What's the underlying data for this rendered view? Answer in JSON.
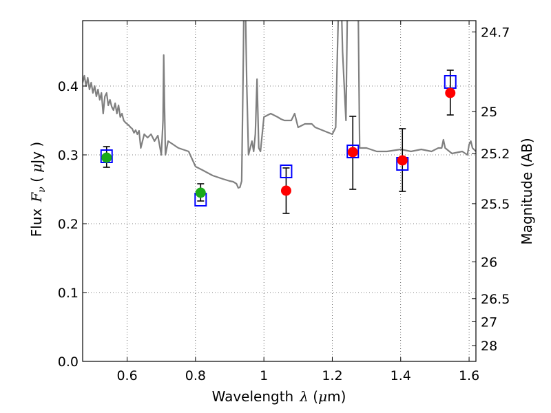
{
  "chart_data": {
    "type": "scatter",
    "xlabel": "Wavelength",
    "xlabel_symbol": "λ",
    "xlabel_unit_open": " (",
    "xlabel_unit_mu": "μ",
    "xlabel_unit_close": "m)",
    "ylabel_prefix": "Flux",
    "ylabel_symbol": "F",
    "ylabel_sub": "ν",
    "ylabel_unit_open": " ( ",
    "ylabel_unit_mu": "μ",
    "ylabel_unit_close": "Jy )",
    "y2label": "Magnitude (AB)",
    "xlim": [
      0.47,
      1.62
    ],
    "ylim": [
      0.0,
      0.495
    ],
    "grid": true,
    "x_ticks": [
      {
        "value": 0.6,
        "label": "0.6"
      },
      {
        "value": 0.8,
        "label": "0.8"
      },
      {
        "value": 1.0,
        "label": "1"
      },
      {
        "value": 1.2,
        "label": "1.2"
      },
      {
        "value": 1.4,
        "label": "1.4"
      },
      {
        "value": 1.6,
        "label": "1.6"
      }
    ],
    "y_ticks": [
      {
        "value": 0.0,
        "label": "0.0"
      },
      {
        "value": 0.1,
        "label": "0.1"
      },
      {
        "value": 0.2,
        "label": "0.2"
      },
      {
        "value": 0.3,
        "label": "0.3"
      },
      {
        "value": 0.4,
        "label": "0.4"
      }
    ],
    "y2_ticks": [
      {
        "value": 24.7,
        "label": "24.7"
      },
      {
        "value": 25.0,
        "label": "25"
      },
      {
        "value": 25.2,
        "label": "25.2"
      },
      {
        "value": 25.5,
        "label": "25.5"
      },
      {
        "value": 26.0,
        "label": "26"
      },
      {
        "value": 26.5,
        "label": "26.5"
      },
      {
        "value": 27.0,
        "label": "27"
      },
      {
        "value": 28.0,
        "label": "28"
      }
    ],
    "model_spectrum": {
      "color": "#808080",
      "x": [
        0.47,
        0.475,
        0.48,
        0.485,
        0.49,
        0.495,
        0.5,
        0.505,
        0.51,
        0.515,
        0.52,
        0.525,
        0.53,
        0.535,
        0.54,
        0.545,
        0.55,
        0.555,
        0.56,
        0.565,
        0.57,
        0.575,
        0.58,
        0.585,
        0.59,
        0.595,
        0.6,
        0.605,
        0.61,
        0.615,
        0.62,
        0.625,
        0.63,
        0.635,
        0.64,
        0.65,
        0.66,
        0.67,
        0.68,
        0.69,
        0.7,
        0.705,
        0.707,
        0.709,
        0.712,
        0.72,
        0.75,
        0.78,
        0.8,
        0.82,
        0.85,
        0.88,
        0.9,
        0.91,
        0.92,
        0.925,
        0.93,
        0.935,
        0.94,
        0.942,
        0.945,
        0.95,
        0.955,
        0.96,
        0.965,
        0.97,
        0.975,
        0.98,
        0.985,
        0.99,
        1.0,
        1.02,
        1.04,
        1.05,
        1.06,
        1.08,
        1.09,
        1.1,
        1.12,
        1.14,
        1.15,
        1.16,
        1.2,
        1.21,
        1.215,
        1.22,
        1.225,
        1.23,
        1.235,
        1.24,
        1.245,
        1.25,
        1.255,
        1.26,
        1.265,
        1.27,
        1.275,
        1.28,
        1.3,
        1.33,
        1.36,
        1.4,
        1.43,
        1.46,
        1.49,
        1.51,
        1.52,
        1.525,
        1.53,
        1.55,
        1.58,
        1.595,
        1.6,
        1.605,
        1.61,
        1.62
      ],
      "y": [
        0.405,
        0.415,
        0.4,
        0.412,
        0.395,
        0.405,
        0.39,
        0.4,
        0.385,
        0.395,
        0.38,
        0.39,
        0.36,
        0.385,
        0.39,
        0.372,
        0.38,
        0.37,
        0.365,
        0.375,
        0.36,
        0.372,
        0.355,
        0.36,
        0.35,
        0.347,
        0.345,
        0.343,
        0.34,
        0.338,
        0.332,
        0.336,
        0.33,
        0.335,
        0.31,
        0.33,
        0.325,
        0.33,
        0.32,
        0.328,
        0.3,
        0.35,
        0.445,
        0.38,
        0.3,
        0.32,
        0.31,
        0.305,
        0.283,
        0.278,
        0.27,
        0.265,
        0.262,
        0.261,
        0.258,
        0.252,
        0.253,
        0.262,
        0.45,
        0.55,
        0.55,
        0.4,
        0.3,
        0.31,
        0.32,
        0.305,
        0.33,
        0.41,
        0.31,
        0.305,
        0.355,
        0.36,
        0.355,
        0.352,
        0.35,
        0.35,
        0.36,
        0.34,
        0.345,
        0.345,
        0.34,
        0.338,
        0.33,
        0.34,
        0.45,
        0.55,
        0.55,
        0.45,
        0.4,
        0.35,
        0.55,
        0.55,
        0.55,
        0.55,
        0.55,
        0.55,
        0.55,
        0.31,
        0.31,
        0.305,
        0.305,
        0.308,
        0.305,
        0.308,
        0.305,
        0.31,
        0.31,
        0.322,
        0.31,
        0.302,
        0.305,
        0.3,
        0.315,
        0.32,
        0.31,
        0.305
      ]
    },
    "error_bars": [
      {
        "x": 0.54,
        "low": 0.282,
        "high": 0.312
      },
      {
        "x": 0.815,
        "low": 0.233,
        "high": 0.258
      },
      {
        "x": 1.065,
        "low": 0.215,
        "high": 0.281
      },
      {
        "x": 1.26,
        "low": 0.25,
        "high": 0.356
      },
      {
        "x": 1.405,
        "low": 0.247,
        "high": 0.338
      },
      {
        "x": 1.545,
        "low": 0.358,
        "high": 0.423
      }
    ],
    "series": [
      {
        "marker": "square-open",
        "color": "#0000ff",
        "points": [
          {
            "x": 0.54,
            "y": 0.298
          },
          {
            "x": 0.815,
            "y": 0.235
          },
          {
            "x": 1.065,
            "y": 0.276
          },
          {
            "x": 1.26,
            "y": 0.305
          },
          {
            "x": 1.405,
            "y": 0.287
          },
          {
            "x": 1.545,
            "y": 0.406
          }
        ]
      },
      {
        "marker": "circle",
        "color": "#1aaa1a",
        "points": [
          {
            "x": 0.54,
            "y": 0.296
          },
          {
            "x": 0.815,
            "y": 0.245
          }
        ]
      },
      {
        "marker": "circle",
        "color": "#ff0000",
        "points": [
          {
            "x": 1.065,
            "y": 0.248
          },
          {
            "x": 1.26,
            "y": 0.304
          },
          {
            "x": 1.405,
            "y": 0.292
          },
          {
            "x": 1.545,
            "y": 0.39
          }
        ]
      }
    ]
  }
}
